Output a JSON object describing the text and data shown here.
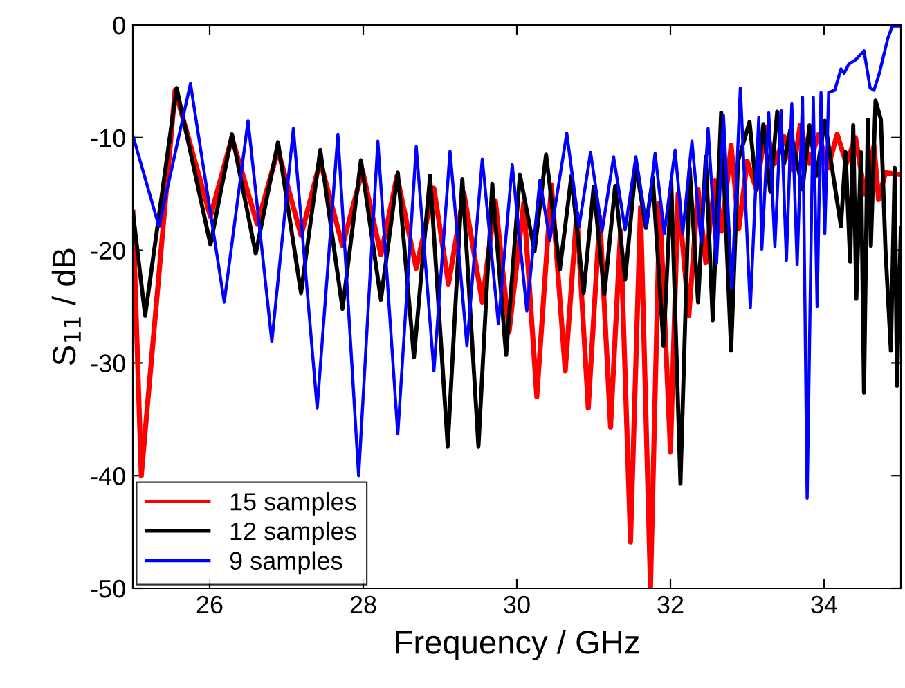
{
  "chart_data": {
    "type": "line",
    "xlabel": "Frequency / GHz",
    "ylabel": "S$_{11}$ / dB",
    "xlim": [
      25,
      35
    ],
    "ylim": [
      -50,
      0
    ],
    "xticks": [
      26,
      28,
      30,
      32,
      34
    ],
    "yticks": [
      -50,
      -40,
      -30,
      -20,
      -10,
      0
    ],
    "grid": false,
    "legend": "bottom left",
    "marker": "none",
    "line_style": "solid",
    "series": [
      {
        "name": "15 samples",
        "color": "#ff0000",
        "x": [
          25.0,
          25.11,
          25.55,
          26.01,
          26.29,
          26.62,
          26.89,
          27.19,
          27.44,
          27.73,
          27.99,
          28.23,
          28.44,
          28.69,
          28.92,
          29.11,
          29.31,
          29.55,
          29.72,
          29.9,
          30.09,
          30.26,
          30.45,
          30.63,
          30.78,
          30.93,
          31.08,
          31.22,
          31.35,
          31.48,
          31.61,
          31.74,
          31.86,
          32.0,
          32.1,
          32.24,
          32.36,
          32.46,
          32.58,
          32.67,
          32.79,
          32.89,
          33.0,
          33.12,
          33.24,
          33.36,
          33.48,
          33.6,
          33.69,
          33.81,
          33.93,
          34.05,
          34.17,
          34.29,
          34.41,
          34.53,
          34.65,
          34.71,
          34.8,
          35.0
        ],
        "values": [
          -16.6,
          -40,
          -5.8,
          -17.0,
          -10.0,
          -17.7,
          -11.1,
          -18.7,
          -12.1,
          -19.6,
          -12.9,
          -20.4,
          -13.4,
          -21.6,
          -14.5,
          -23.0,
          -14.9,
          -24.6,
          -15.6,
          -27.2,
          -15.8,
          -33.0,
          -14.2,
          -30.7,
          -16.7,
          -34.0,
          -17.0,
          -35.7,
          -18.3,
          -45.9,
          -16.2,
          -50,
          -15.8,
          -37.9,
          -15.0,
          -25.8,
          -14.6,
          -21.1,
          -13.8,
          -18.3,
          -10.7,
          -18.1,
          -12.1,
          -14.6,
          -9.1,
          -12.3,
          -9.9,
          -12.9,
          -8.9,
          -12.3,
          -9.7,
          -12.7,
          -9.7,
          -12.3,
          -10.0,
          -15.0,
          -10.7,
          -15.5,
          -13.1,
          -13.3
        ]
      },
      {
        "name": "12 samples",
        "color": "#000000",
        "x": [
          25.0,
          25.16,
          25.57,
          26.01,
          26.29,
          26.6,
          26.89,
          27.19,
          27.44,
          27.73,
          27.97,
          28.23,
          28.45,
          28.66,
          28.87,
          29.1,
          29.29,
          29.5,
          29.68,
          29.86,
          30.04,
          30.23,
          30.38,
          30.56,
          30.71,
          30.87,
          31.0,
          31.14,
          31.28,
          31.41,
          31.55,
          31.68,
          31.77,
          31.91,
          32.01,
          32.13,
          32.25,
          32.36,
          32.46,
          32.55,
          32.66,
          32.79,
          32.88,
          33.03,
          33.12,
          33.21,
          33.3,
          33.39,
          33.48,
          33.56,
          33.72,
          33.81,
          33.9,
          34.01,
          34.22,
          34.28,
          34.34,
          34.38,
          34.42,
          34.48,
          34.52,
          34.57,
          34.61,
          34.67,
          34.74,
          34.8,
          34.87,
          34.92,
          34.95,
          35.0
        ],
        "values": [
          -16.6,
          -25.8,
          -5.6,
          -19.5,
          -9.7,
          -20.3,
          -10.4,
          -23.8,
          -11.1,
          -25.2,
          -12.0,
          -24.4,
          -13.1,
          -29.5,
          -13.4,
          -37.4,
          -13.7,
          -37.4,
          -14.1,
          -29.3,
          -13.3,
          -20.1,
          -11.5,
          -21.7,
          -13.4,
          -23.8,
          -14.4,
          -23.9,
          -14.3,
          -22.6,
          -12.4,
          -18.0,
          -13.6,
          -28.5,
          -13.9,
          -40.7,
          -12.7,
          -24.6,
          -11.7,
          -26.2,
          -7.8,
          -28.9,
          -12.1,
          -8.6,
          -14.6,
          -8.8,
          -14.8,
          -7.7,
          -12.3,
          -9.3,
          -14.6,
          -8.9,
          -13.4,
          -8.5,
          -17.9,
          -11.3,
          -21.0,
          -8.9,
          -24.3,
          -11.3,
          -32.6,
          -8.4,
          -19.6,
          -6.7,
          -8.4,
          -20.0,
          -28.9,
          -12.7,
          -32.0,
          -18.0
        ]
      },
      {
        "name": "9 samples",
        "color": "#0000ff",
        "x": [
          25.0,
          25.34,
          25.75,
          26.19,
          26.5,
          26.81,
          27.09,
          27.4,
          27.67,
          27.94,
          28.19,
          28.45,
          28.69,
          28.92,
          29.13,
          29.35,
          29.55,
          29.76,
          29.94,
          30.13,
          30.3,
          30.43,
          30.65,
          30.81,
          30.96,
          31.11,
          31.26,
          31.41,
          31.55,
          31.69,
          31.8,
          31.92,
          32.06,
          32.16,
          32.28,
          32.4,
          32.49,
          32.6,
          32.69,
          32.8,
          32.91,
          33.04,
          33.15,
          33.19,
          33.28,
          33.36,
          33.44,
          33.51,
          33.58,
          33.65,
          33.72,
          33.78,
          33.86,
          33.91,
          33.96,
          34.01,
          34.06,
          34.14,
          34.22,
          34.26,
          34.32,
          34.41,
          34.52,
          34.6,
          34.65,
          34.72,
          34.83,
          34.89,
          35.0
        ],
        "values": [
          -9.8,
          -17.9,
          -5.2,
          -24.6,
          -8.5,
          -28.1,
          -9.2,
          -34.0,
          -9.7,
          -40,
          -10.3,
          -36.3,
          -10.8,
          -30.7,
          -11.2,
          -28.5,
          -11.9,
          -26.5,
          -12.4,
          -25.4,
          -13.8,
          -19.1,
          -9.6,
          -17.9,
          -11.3,
          -18.3,
          -11.7,
          -18.2,
          -11.7,
          -17.9,
          -11.4,
          -18.5,
          -11.1,
          -18.5,
          -10.3,
          -19.3,
          -9.2,
          -21.2,
          -8.0,
          -23.4,
          -5.6,
          -25.1,
          -8.2,
          -19.9,
          -7.8,
          -19.7,
          -7.6,
          -20.9,
          -7.0,
          -21.3,
          -6.4,
          -42.0,
          -6.4,
          -25.0,
          -6.0,
          -18.5,
          -6.0,
          -5.8,
          -3.9,
          -4.3,
          -3.5,
          -3.1,
          -2.3,
          -5.6,
          -5.8,
          -4.3,
          -1.2,
          -0.1,
          -0.1
        ]
      }
    ]
  }
}
